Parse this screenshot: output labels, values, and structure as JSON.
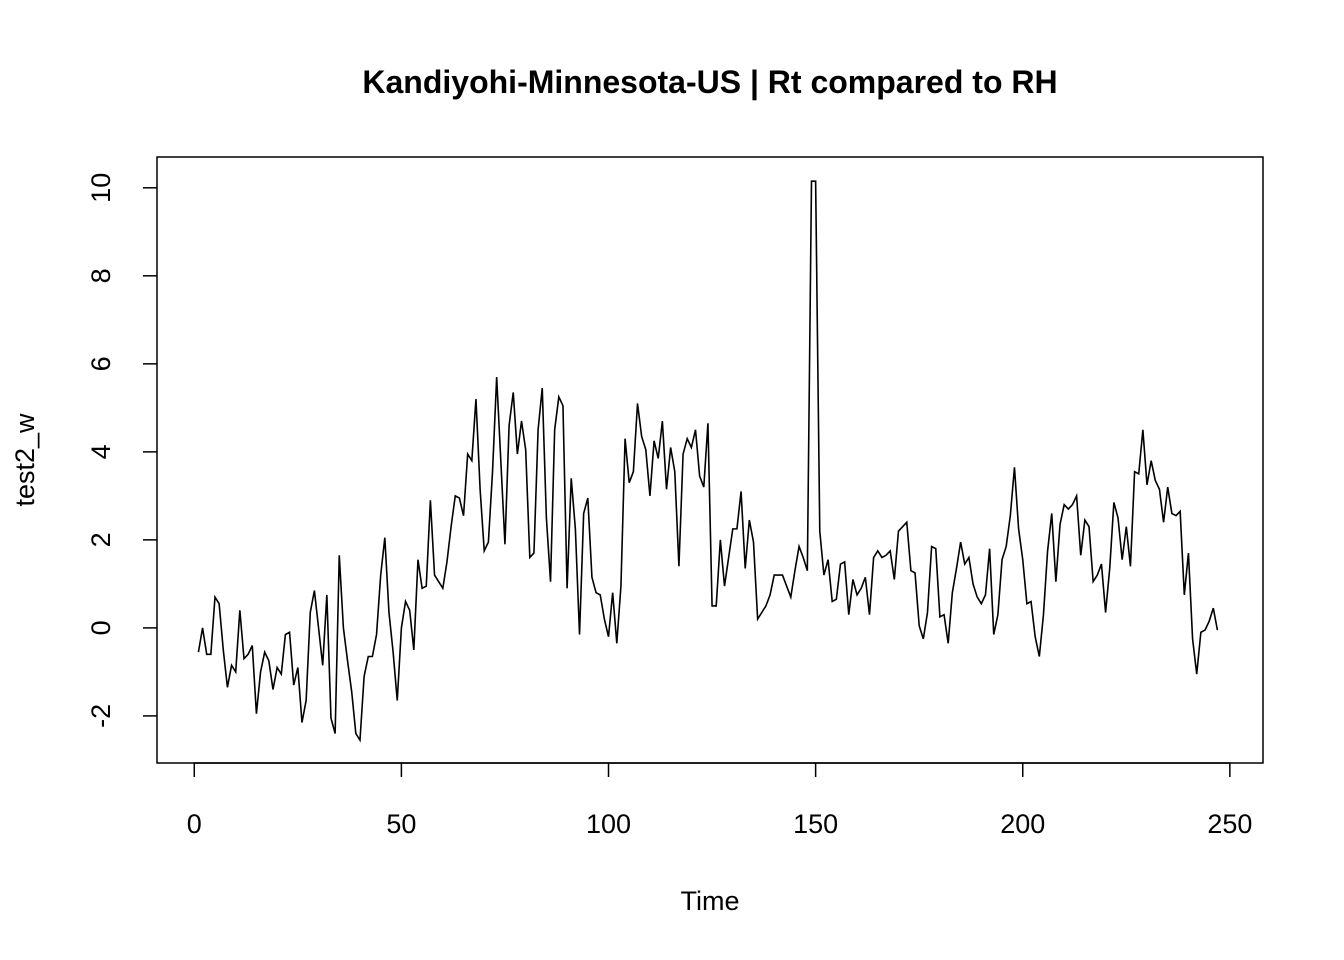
{
  "chart_data": {
    "type": "line",
    "title": "Kandiyohi-Minnesota-US | Rt compared to RH",
    "xlabel": "Time",
    "ylabel": "test2_w",
    "xlim": [
      -9.0,
      258.0
    ],
    "ylim": [
      -3.07,
      10.7
    ],
    "x_ticks": [
      0,
      50,
      100,
      150,
      200,
      250
    ],
    "y_ticks": [
      -2,
      0,
      2,
      4,
      6,
      8,
      10
    ],
    "x_tick_labels": [
      "0",
      "50",
      "100",
      "150",
      "200",
      "250"
    ],
    "y_tick_labels": [
      "-2",
      "0",
      "2",
      "4",
      "6",
      "8",
      "10"
    ],
    "series": [
      {
        "line_color": "#000000",
        "x_start": 1,
        "values": [
          -0.55,
          0.0,
          -0.6,
          -0.6,
          0.7,
          0.55,
          -0.5,
          -1.35,
          -0.85,
          -1.0,
          0.4,
          -0.7,
          -0.6,
          -0.4,
          -1.95,
          -1.0,
          -0.55,
          -0.75,
          -1.4,
          -0.9,
          -1.05,
          -0.15,
          -0.1,
          -1.3,
          -0.9,
          -2.15,
          -1.65,
          0.35,
          0.85,
          0.0,
          -0.85,
          0.75,
          -2.05,
          -2.4,
          1.65,
          0.0,
          -0.75,
          -1.45,
          -2.4,
          -2.55,
          -1.1,
          -0.65,
          -0.65,
          -0.15,
          1.2,
          2.05,
          0.35,
          -0.55,
          -1.65,
          0.0,
          0.6,
          0.4,
          -0.5,
          1.55,
          0.9,
          0.95,
          2.9,
          1.2,
          1.05,
          0.9,
          1.5,
          2.3,
          3.0,
          2.95,
          2.55,
          3.95,
          3.8,
          5.2,
          3.15,
          1.75,
          1.95,
          3.55,
          5.7,
          3.8,
          1.9,
          4.6,
          5.35,
          3.95,
          4.7,
          4.05,
          1.6,
          1.7,
          4.5,
          5.45,
          2.5,
          1.05,
          4.5,
          5.25,
          5.05,
          0.9,
          3.4,
          2.25,
          -0.15,
          2.6,
          2.95,
          1.15,
          0.8,
          0.75,
          0.2,
          -0.2,
          0.8,
          -0.35,
          0.95,
          4.3,
          3.3,
          3.55,
          5.1,
          4.35,
          4.05,
          3.0,
          4.25,
          3.85,
          4.7,
          3.15,
          4.1,
          3.55,
          1.4,
          3.95,
          4.3,
          4.1,
          4.5,
          3.45,
          3.2,
          4.65,
          0.5,
          0.5,
          2.0,
          0.95,
          1.6,
          2.25,
          2.25,
          3.1,
          1.35,
          2.45,
          1.95,
          0.2,
          0.35,
          0.5,
          0.75,
          1.2,
          1.2,
          1.2,
          0.95,
          0.7,
          1.3,
          1.85,
          1.6,
          1.3,
          10.15,
          10.15,
          2.2,
          1.2,
          1.55,
          0.6,
          0.65,
          1.45,
          1.5,
          0.3,
          1.1,
          0.75,
          0.9,
          1.15,
          0.3,
          1.6,
          1.75,
          1.6,
          1.65,
          1.75,
          1.1,
          2.2,
          2.3,
          2.4,
          1.3,
          1.25,
          0.05,
          -0.25,
          0.35,
          1.85,
          1.8,
          0.25,
          0.3,
          -0.35,
          0.8,
          1.35,
          1.95,
          1.45,
          1.6,
          1.0,
          0.7,
          0.55,
          0.75,
          1.8,
          -0.15,
          0.3,
          1.55,
          1.85,
          2.55,
          3.65,
          2.25,
          1.55,
          0.55,
          0.6,
          -0.2,
          -0.65,
          0.3,
          1.75,
          2.6,
          1.05,
          2.35,
          2.8,
          2.7,
          2.8,
          3.0,
          1.65,
          2.45,
          2.3,
          1.05,
          1.2,
          1.45,
          0.35,
          1.35,
          2.85,
          2.5,
          1.55,
          2.3,
          1.4,
          3.55,
          3.5,
          4.5,
          3.25,
          3.8,
          3.35,
          3.15,
          2.4,
          3.2,
          2.6,
          2.55,
          2.65,
          0.75,
          1.7,
          -0.25,
          -1.05,
          -0.1,
          -0.05,
          0.15,
          0.45,
          -0.05
        ]
      }
    ]
  }
}
